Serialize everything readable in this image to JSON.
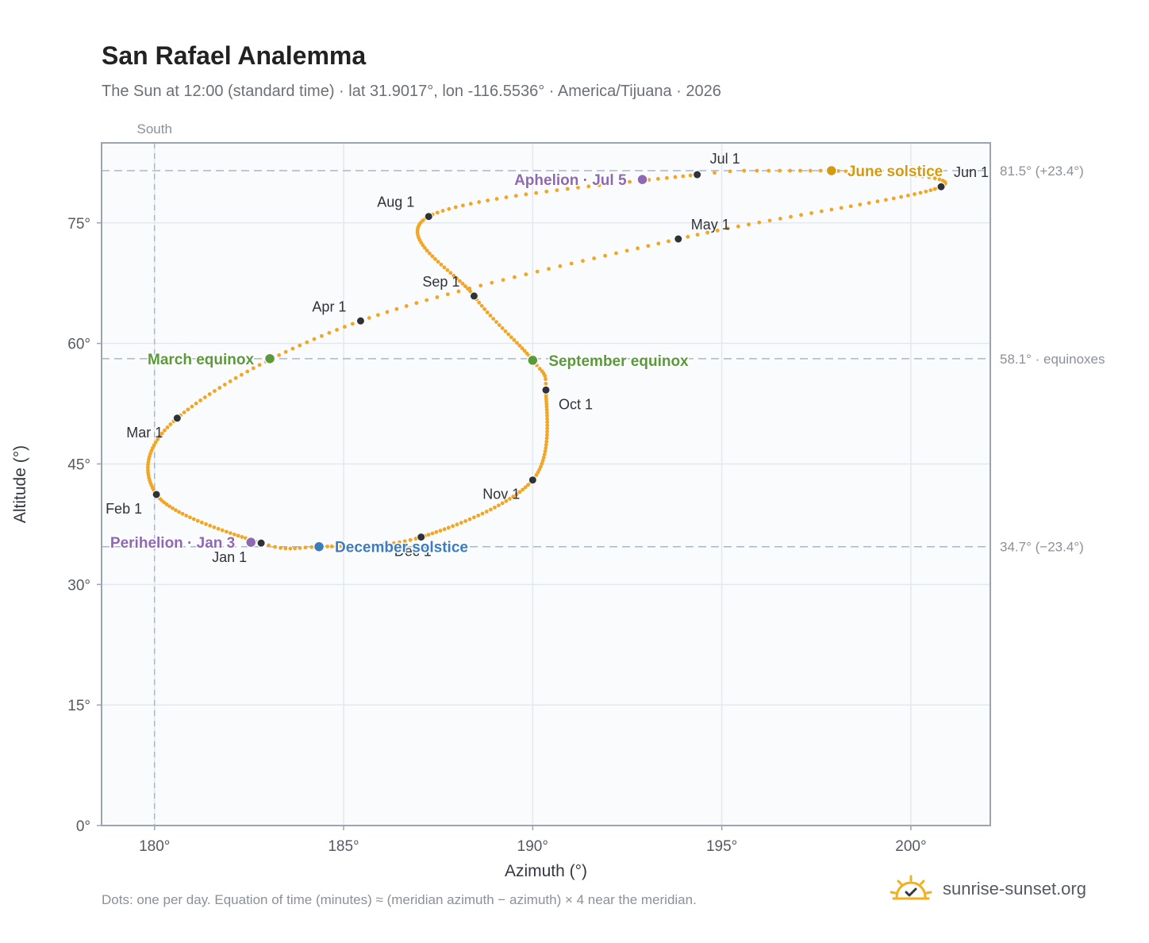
{
  "header": {
    "title": "San Rafael Analemma",
    "subtitle": "The Sun at 12:00 (standard time) · lat 31.9017°, lon -116.5536° · America/Tijuana · 2026"
  },
  "footer": {
    "note": "Dots: one per day. Equation of time (minutes) ≈ (meridian azimuth − azimuth) × 4 near the meridian.",
    "brand": "sunrise-sunset.org",
    "brand_icon": "sun-check-icon"
  },
  "colors": {
    "curve": "#f2a623",
    "month_marker": "#2f3338",
    "equinox": "#5a9a3a",
    "june_solstice": "#d49a12",
    "december_solstice": "#3b7bbf",
    "apsis": "#8e69b3",
    "reference_line": "#a9b8c6",
    "plot_bg": "#f9fbfd",
    "frame": "#9aa4b2",
    "grid": "#e4e8ee"
  },
  "chart_data": {
    "type": "scatter",
    "xlabel": "Azimuth (°)",
    "ylabel": "Altitude (°)",
    "xlim": [
      178.6,
      202.1
    ],
    "ylim": [
      0,
      81.5
    ],
    "xticks": [
      180,
      185,
      190,
      195,
      200
    ],
    "yticks": [
      0,
      15,
      30,
      45,
      60,
      75
    ],
    "xtick_labels": [
      "180°",
      "185°",
      "190°",
      "195°",
      "200°"
    ],
    "ytick_labels": [
      "0°",
      "15°",
      "30°",
      "45°",
      "60°",
      "75°"
    ],
    "grid": true,
    "south": {
      "azimuth": 180,
      "label": "South"
    },
    "reference_lines": [
      {
        "altitude": 81.5,
        "label": "81.5° (+23.4°)"
      },
      {
        "altitude": 58.1,
        "label": "58.1° · equinoxes"
      },
      {
        "altitude": 34.7,
        "label": "34.7° (−23.4°)"
      }
    ],
    "analemma_anchors": [
      {
        "day": 1,
        "az": 182.82,
        "alt": 35.15
      },
      {
        "day": 32,
        "az": 180.05,
        "alt": 41.2
      },
      {
        "day": 60,
        "az": 180.6,
        "alt": 50.7
      },
      {
        "day": 91,
        "az": 185.45,
        "alt": 62.8
      },
      {
        "day": 121,
        "az": 193.85,
        "alt": 73.0
      },
      {
        "day": 152,
        "az": 200.8,
        "alt": 79.5
      },
      {
        "day": 171,
        "az": 197.9,
        "alt": 81.5
      },
      {
        "day": 182,
        "az": 194.35,
        "alt": 81.0
      },
      {
        "day": 213,
        "az": 187.25,
        "alt": 75.8
      },
      {
        "day": 244,
        "az": 188.45,
        "alt": 65.9
      },
      {
        "day": 266,
        "az": 190.0,
        "alt": 57.9
      },
      {
        "day": 274,
        "az": 190.35,
        "alt": 54.2
      },
      {
        "day": 305,
        "az": 190.0,
        "alt": 43.0
      },
      {
        "day": 335,
        "az": 187.05,
        "alt": 35.9
      },
      {
        "day": 355,
        "az": 184.35,
        "alt": 34.7
      },
      {
        "day": 365,
        "az": 182.82,
        "alt": 35.15
      }
    ],
    "month_markers": [
      {
        "label": "Jan 1",
        "az": 182.82,
        "alt": 35.15
      },
      {
        "label": "Feb 1",
        "az": 180.05,
        "alt": 41.2
      },
      {
        "label": "Mar 1",
        "az": 180.6,
        "alt": 50.7
      },
      {
        "label": "Apr 1",
        "az": 185.45,
        "alt": 62.8
      },
      {
        "label": "May 1",
        "az": 193.85,
        "alt": 73.0
      },
      {
        "label": "Jun 1",
        "az": 200.8,
        "alt": 79.5
      },
      {
        "label": "Jul 1",
        "az": 194.35,
        "alt": 81.0
      },
      {
        "label": "Aug 1",
        "az": 187.25,
        "alt": 75.8
      },
      {
        "label": "Sep 1",
        "az": 188.45,
        "alt": 65.9
      },
      {
        "label": "Oct 1",
        "az": 190.35,
        "alt": 54.2
      },
      {
        "label": "Nov 1",
        "az": 190.0,
        "alt": 43.0
      },
      {
        "label": "Dec 1",
        "az": 187.05,
        "alt": 35.9
      }
    ],
    "events": [
      {
        "label": "March equinox",
        "az": 183.05,
        "alt": 58.1,
        "kind": "equinox"
      },
      {
        "label": "September equinox",
        "az": 190.0,
        "alt": 57.9,
        "kind": "equinox"
      },
      {
        "label": "June solstice",
        "az": 197.9,
        "alt": 81.5,
        "kind": "june_solstice"
      },
      {
        "label": "December solstice",
        "az": 184.35,
        "alt": 34.7,
        "kind": "december_solstice"
      },
      {
        "label": "Aphelion · Jul 5",
        "az": 192.9,
        "alt": 80.4,
        "kind": "apsis"
      },
      {
        "label": "Perihelion · Jan 3",
        "az": 182.55,
        "alt": 35.25,
        "kind": "apsis"
      }
    ]
  }
}
